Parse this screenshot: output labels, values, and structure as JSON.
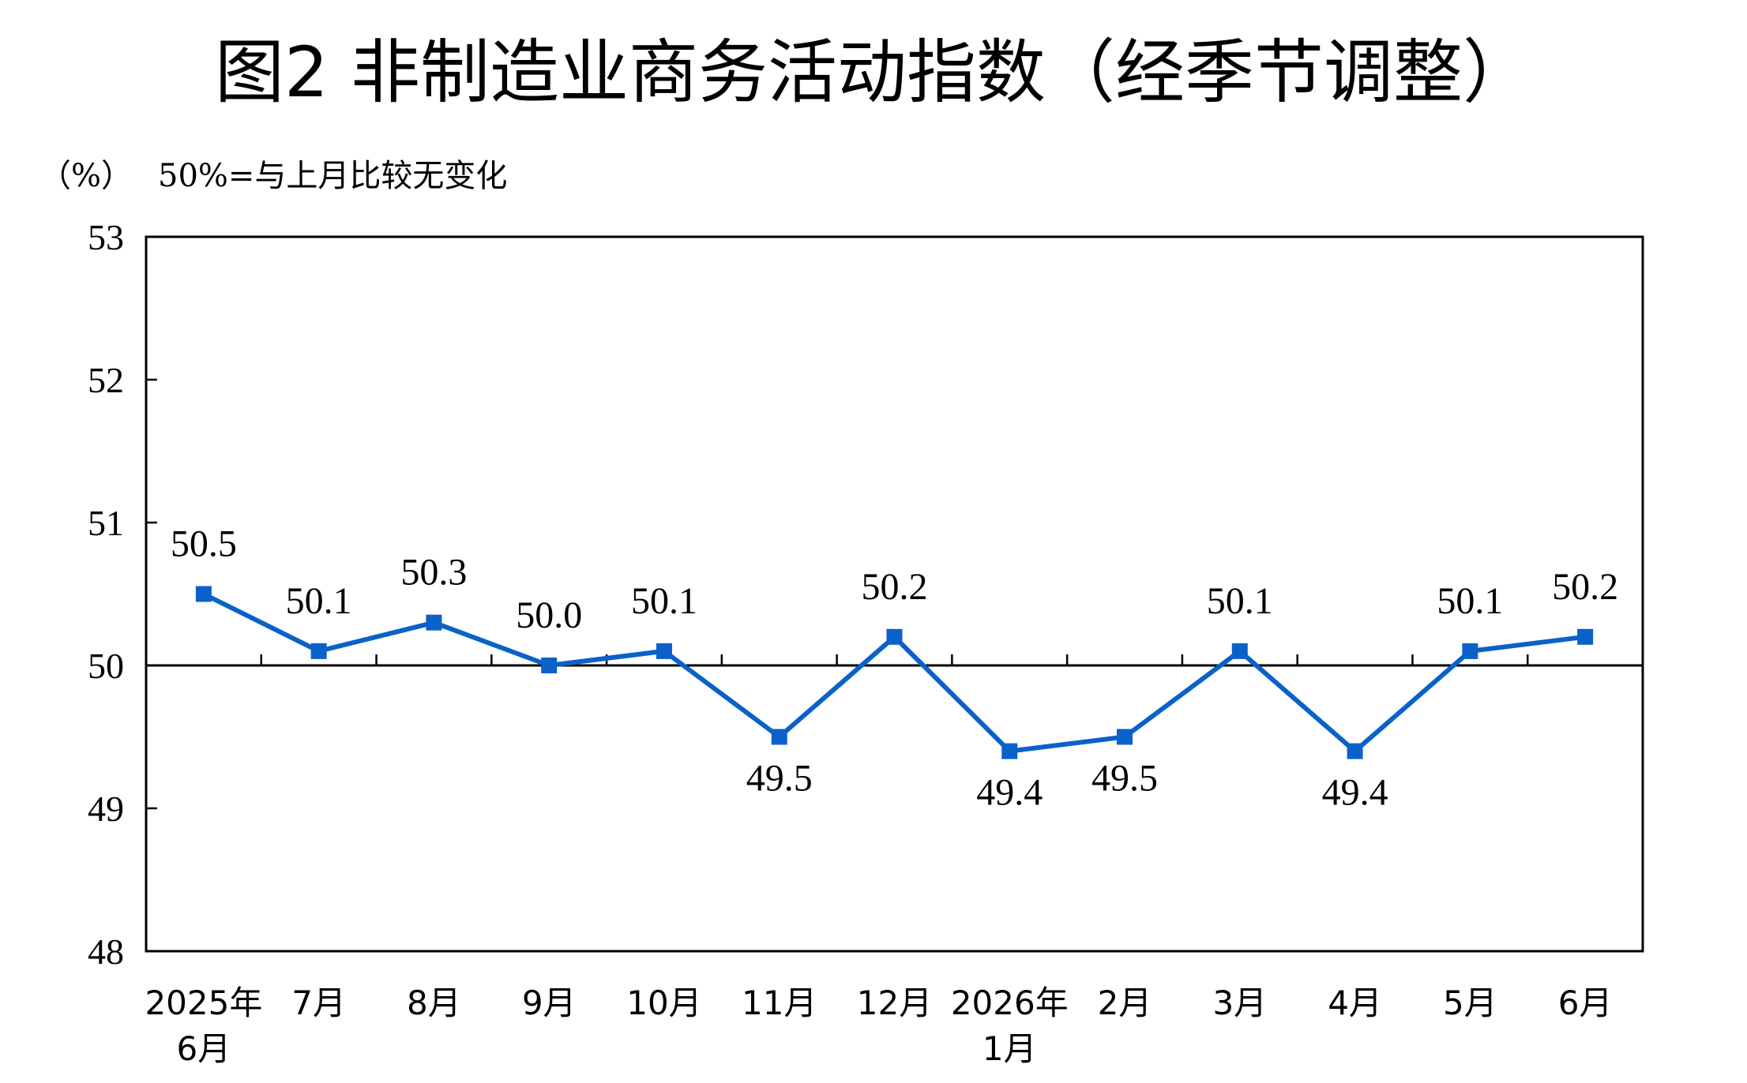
{
  "title": "图2  非制造业商务活动指数（经季节调整）",
  "unit_label": "（%）",
  "note": "50%=与上月比较无变化",
  "chart_data": {
    "type": "line",
    "title": "图2  非制造业商务活动指数（经季节调整）",
    "ylabel": "（%）",
    "reference_line": 50,
    "ylim": [
      48,
      53
    ],
    "yticks": [
      "48",
      "49",
      "50",
      "51",
      "52",
      "53"
    ],
    "categories": [
      [
        "2025年",
        "6月"
      ],
      [
        "7月"
      ],
      [
        "8月"
      ],
      [
        "9月"
      ],
      [
        "10月"
      ],
      [
        "11月"
      ],
      [
        "12月"
      ],
      [
        "2026年",
        "1月"
      ],
      [
        "2月"
      ],
      [
        "3月"
      ],
      [
        "4月"
      ],
      [
        "5月"
      ],
      [
        "6月"
      ]
    ],
    "series": [
      {
        "values": [
          50.5,
          50.1,
          50.3,
          50.0,
          50.1,
          49.5,
          50.2,
          49.4,
          49.5,
          50.1,
          49.4,
          50.1,
          50.2
        ],
        "labels": [
          "50.5",
          "50.1",
          "50.3",
          "50.0",
          "50.1",
          "49.5",
          "50.2",
          "49.4",
          "49.5",
          "50.1",
          "49.4",
          "50.1",
          "50.2"
        ],
        "label_pos": [
          "above",
          "above",
          "above",
          "above",
          "above",
          "below",
          "above",
          "below",
          "below",
          "above",
          "below",
          "above",
          "above"
        ],
        "color": "#0a62c9"
      }
    ],
    "grid": false,
    "legend": "none"
  }
}
